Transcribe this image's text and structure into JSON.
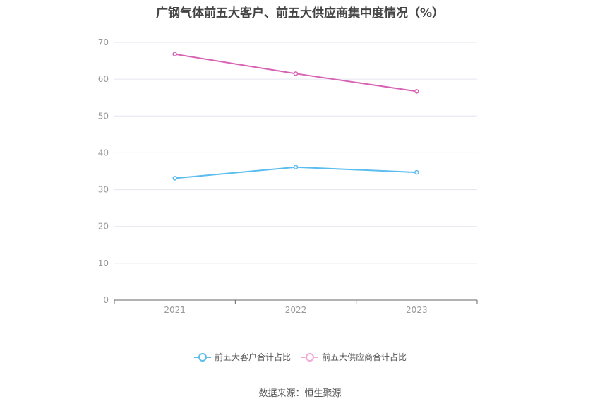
{
  "chart_data": {
    "type": "line",
    "title": "广钢气体前五大客户、前五大供应商集中度情况（%）",
    "categories": [
      "2021",
      "2022",
      "2023"
    ],
    "series": [
      {
        "name": "前五大客户合计占比",
        "values": [
          33.1,
          36.1,
          34.7
        ],
        "color": "#5bbcee"
      },
      {
        "name": "前五大供应商合计占比",
        "values": [
          66.8,
          61.5,
          56.7
        ],
        "color": "#d862b4"
      }
    ],
    "ylim": [
      0,
      70
    ],
    "yticks": [
      "0",
      "10",
      "20",
      "30",
      "40",
      "50",
      "60",
      "70"
    ],
    "grid": true,
    "legend": "bottom",
    "xlabel": "",
    "ylabel": ""
  },
  "footer": {
    "source": "数据来源：恒生聚源"
  },
  "colors": {
    "grid": "#e3e6f0",
    "axis": "#666666",
    "legend_series_2": "#f1a9d6"
  }
}
